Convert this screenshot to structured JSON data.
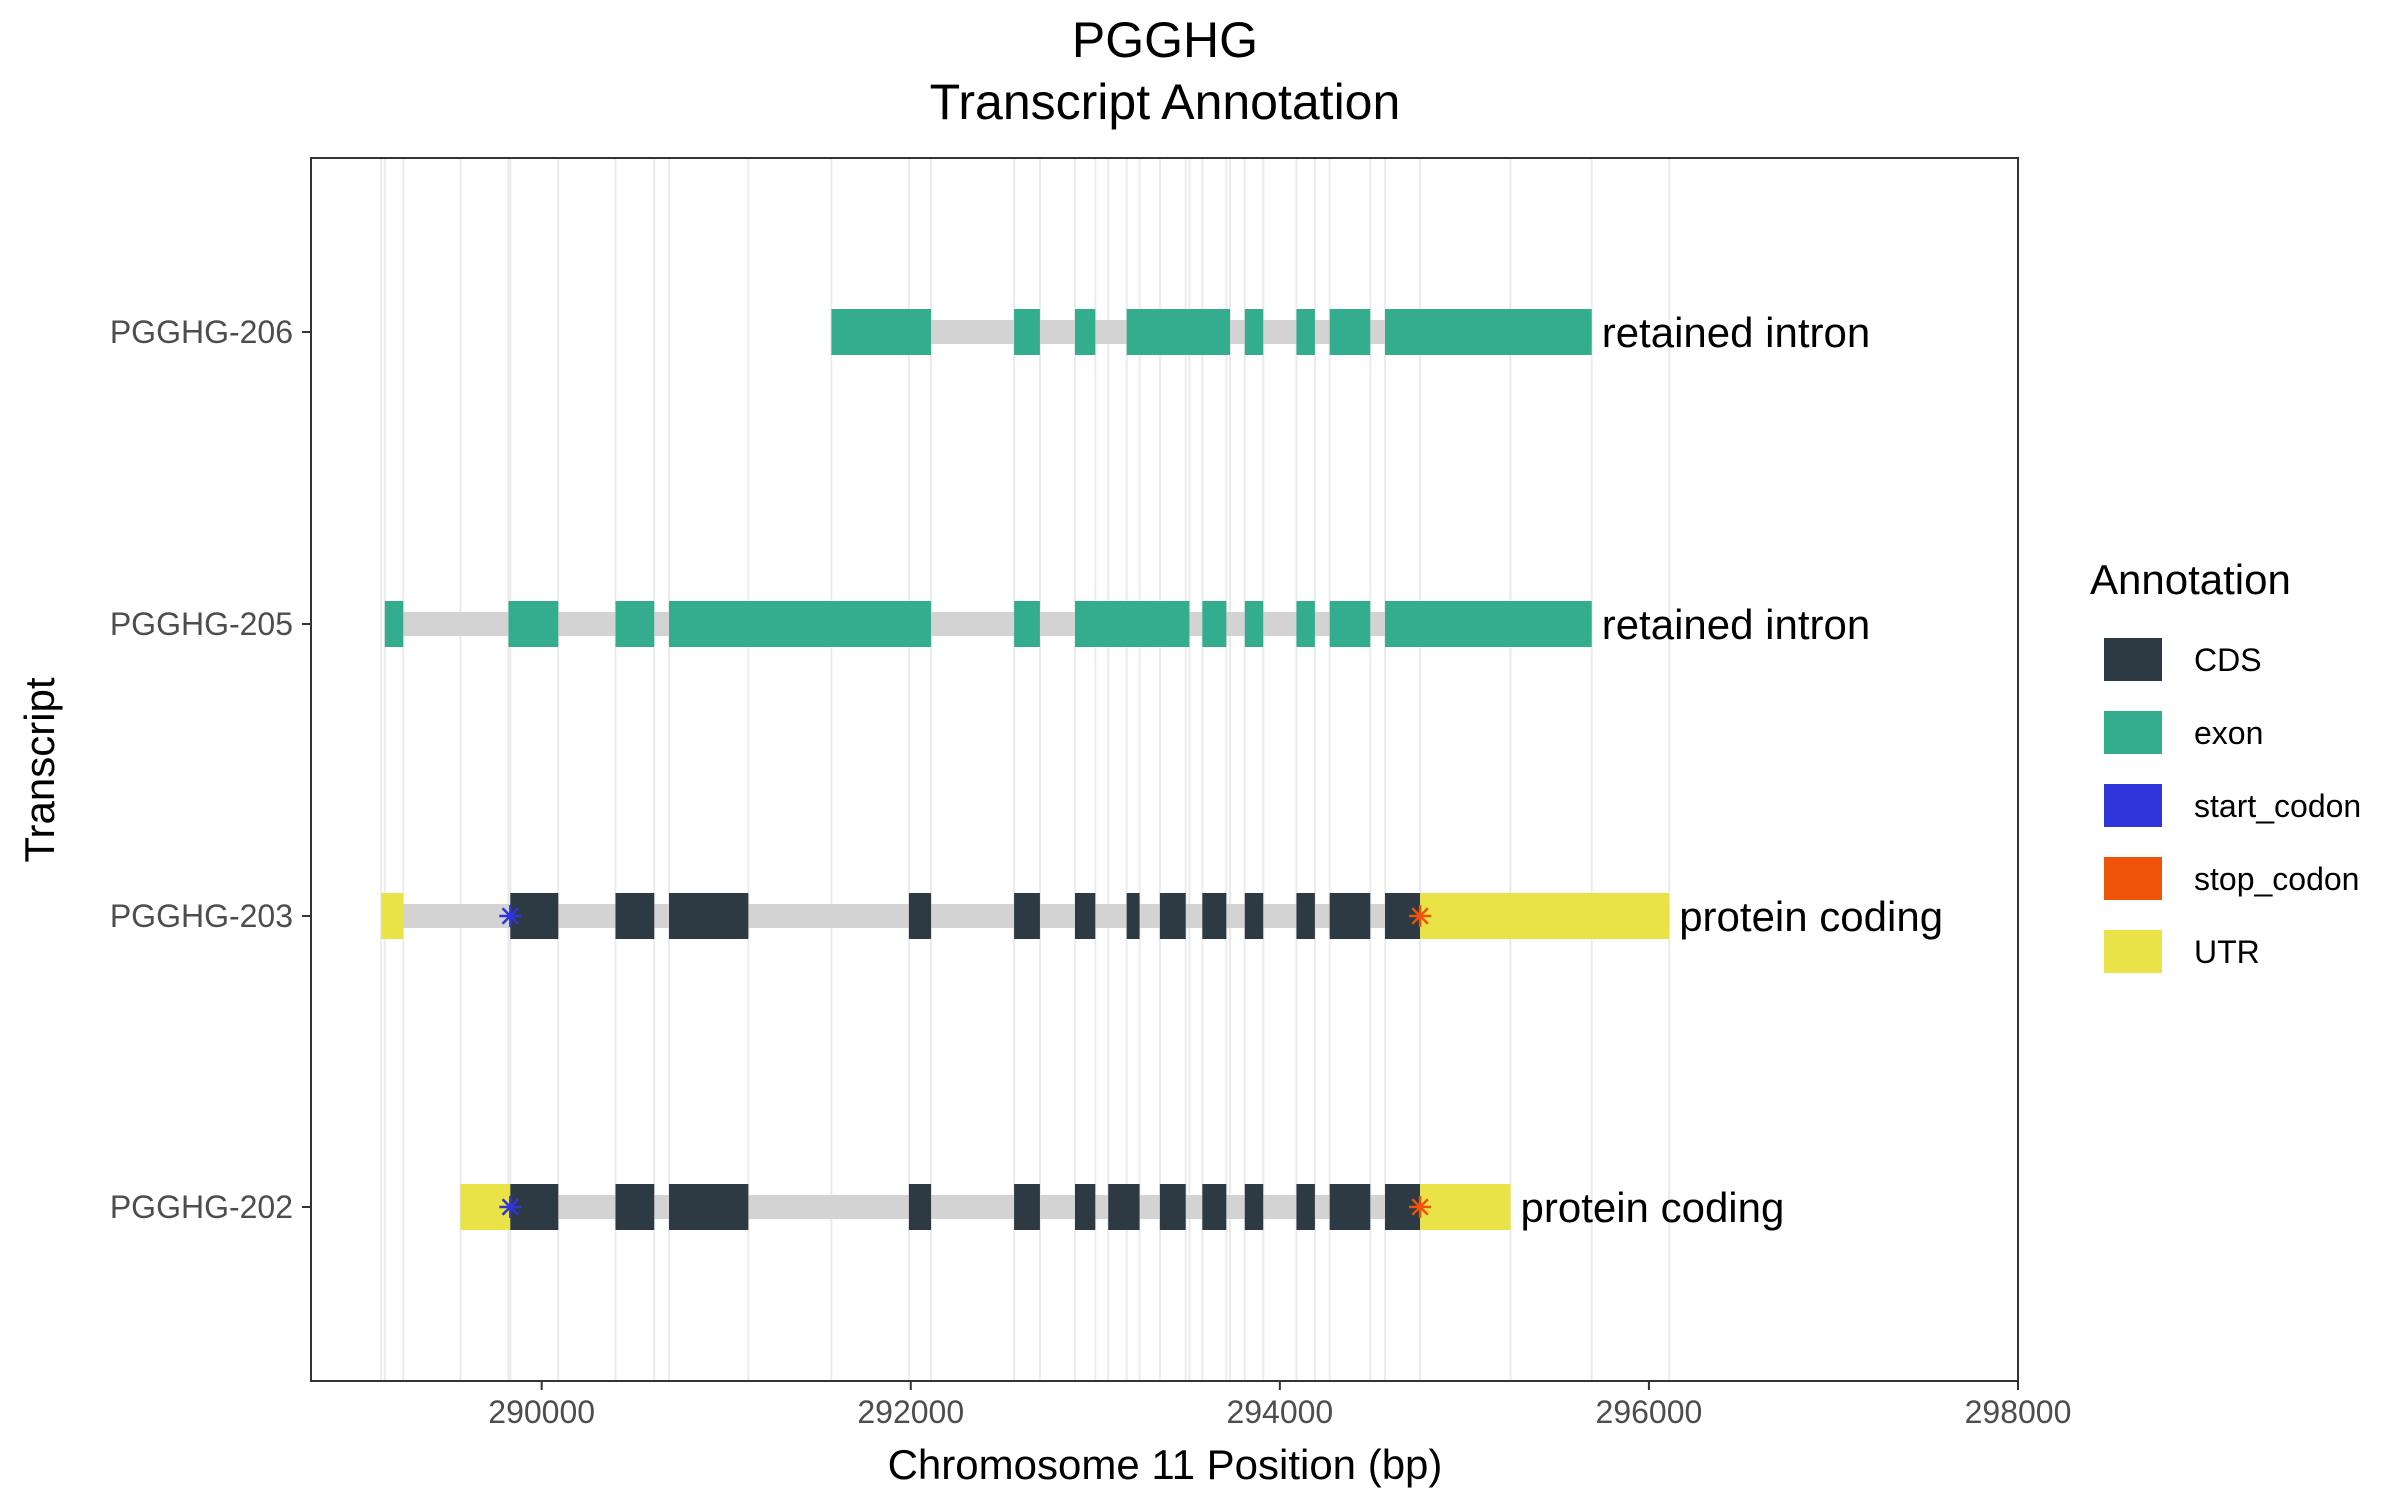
{
  "chart_data": {
    "type": "gene_transcript_track",
    "title": "PGGHG",
    "subtitle": "Transcript Annotation",
    "xlabel": "Chromosome 11 Position (bp)",
    "ylabel": "Transcript",
    "xlim": [
      288750,
      298000
    ],
    "x_ticks": [
      290000,
      292000,
      294000,
      296000,
      298000
    ],
    "x_tick_labels": [
      "290000",
      "292000",
      "294000",
      "296000",
      "298000"
    ],
    "grid": true,
    "legend_position": "right",
    "legend": {
      "title": "Annotation",
      "items": [
        {
          "key": "CDS",
          "label": "CDS",
          "color": "#2D3A43"
        },
        {
          "key": "exon",
          "label": "exon",
          "color": "#34AD8E"
        },
        {
          "key": "start_codon",
          "label": "start_codon",
          "color": "#2F35DB"
        },
        {
          "key": "stop_codon",
          "label": "stop_codon",
          "color": "#EE5309"
        },
        {
          "key": "UTR",
          "label": "UTR",
          "color": "#EAE348"
        }
      ]
    },
    "intron_color": "#D3D3D3",
    "transcripts": [
      {
        "name": "PGGHG-206",
        "biotype": "retained intron",
        "start": 291570,
        "end": 295690,
        "features": [
          {
            "type": "exon",
            "start": 291570,
            "end": 292110
          },
          {
            "type": "exon",
            "start": 292560,
            "end": 292700
          },
          {
            "type": "exon",
            "start": 292890,
            "end": 293000
          },
          {
            "type": "exon",
            "start": 293170,
            "end": 293730
          },
          {
            "type": "exon",
            "start": 293810,
            "end": 293910
          },
          {
            "type": "exon",
            "start": 294090,
            "end": 294190
          },
          {
            "type": "exon",
            "start": 294270,
            "end": 294490
          },
          {
            "type": "exon",
            "start": 294570,
            "end": 295690
          }
        ]
      },
      {
        "name": "PGGHG-205",
        "biotype": "retained intron",
        "start": 289150,
        "end": 295690,
        "features": [
          {
            "type": "exon",
            "start": 289150,
            "end": 289250
          },
          {
            "type": "exon",
            "start": 289820,
            "end": 290090
          },
          {
            "type": "exon",
            "start": 290400,
            "end": 290610
          },
          {
            "type": "exon",
            "start": 290690,
            "end": 292110
          },
          {
            "type": "exon",
            "start": 292560,
            "end": 292700
          },
          {
            "type": "exon",
            "start": 292890,
            "end": 293510
          },
          {
            "type": "exon",
            "start": 293580,
            "end": 293710
          },
          {
            "type": "exon",
            "start": 293810,
            "end": 293910
          },
          {
            "type": "exon",
            "start": 294090,
            "end": 294190
          },
          {
            "type": "exon",
            "start": 294270,
            "end": 294490
          },
          {
            "type": "exon",
            "start": 294570,
            "end": 295690
          }
        ]
      },
      {
        "name": "PGGHG-203",
        "biotype": "protein coding",
        "start": 289130,
        "end": 296110,
        "start_codon": 289830,
        "stop_codon": 294760,
        "features": [
          {
            "type": "UTR",
            "start": 289130,
            "end": 289250
          },
          {
            "type": "CDS",
            "start": 289830,
            "end": 290090
          },
          {
            "type": "CDS",
            "start": 290400,
            "end": 290610
          },
          {
            "type": "CDS",
            "start": 290690,
            "end": 291120
          },
          {
            "type": "CDS",
            "start": 291990,
            "end": 292110
          },
          {
            "type": "CDS",
            "start": 292560,
            "end": 292700
          },
          {
            "type": "CDS",
            "start": 292890,
            "end": 293000
          },
          {
            "type": "CDS",
            "start": 293170,
            "end": 293240
          },
          {
            "type": "CDS",
            "start": 293350,
            "end": 293490
          },
          {
            "type": "CDS",
            "start": 293580,
            "end": 293710
          },
          {
            "type": "CDS",
            "start": 293810,
            "end": 293910
          },
          {
            "type": "CDS",
            "start": 294090,
            "end": 294190
          },
          {
            "type": "CDS",
            "start": 294270,
            "end": 294490
          },
          {
            "type": "CDS",
            "start": 294570,
            "end": 294760
          },
          {
            "type": "UTR",
            "start": 294760,
            "end": 296110
          }
        ]
      },
      {
        "name": "PGGHG-202",
        "biotype": "protein coding",
        "start": 289560,
        "end": 295250,
        "start_codon": 289830,
        "stop_codon": 294760,
        "features": [
          {
            "type": "UTR",
            "start": 289560,
            "end": 289830
          },
          {
            "type": "CDS",
            "start": 289830,
            "end": 290090
          },
          {
            "type": "CDS",
            "start": 290400,
            "end": 290610
          },
          {
            "type": "CDS",
            "start": 290690,
            "end": 291120
          },
          {
            "type": "CDS",
            "start": 291990,
            "end": 292110
          },
          {
            "type": "CDS",
            "start": 292560,
            "end": 292700
          },
          {
            "type": "CDS",
            "start": 292890,
            "end": 293000
          },
          {
            "type": "CDS",
            "start": 293070,
            "end": 293240
          },
          {
            "type": "CDS",
            "start": 293350,
            "end": 293490
          },
          {
            "type": "CDS",
            "start": 293580,
            "end": 293710
          },
          {
            "type": "CDS",
            "start": 293810,
            "end": 293910
          },
          {
            "type": "CDS",
            "start": 294090,
            "end": 294190
          },
          {
            "type": "CDS",
            "start": 294270,
            "end": 294490
          },
          {
            "type": "CDS",
            "start": 294570,
            "end": 294760
          },
          {
            "type": "UTR",
            "start": 294760,
            "end": 295250
          }
        ]
      }
    ]
  }
}
